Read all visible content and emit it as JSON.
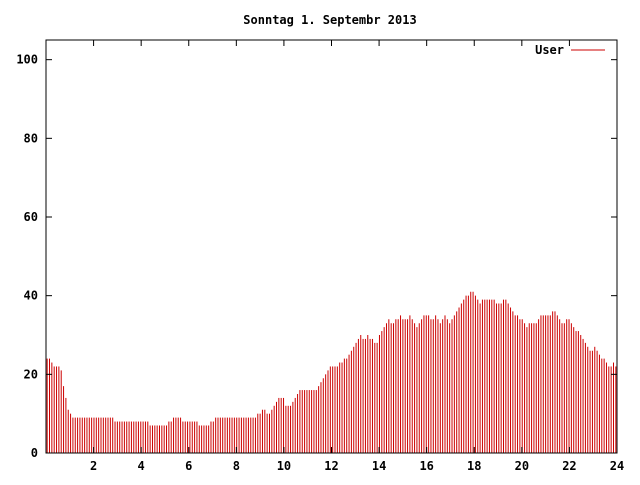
{
  "chart_data": {
    "type": "bar",
    "title": "Sonntag 1. Septembr 2013",
    "xlabel": "",
    "ylabel": "",
    "xlim": [
      0,
      24
    ],
    "ylim": [
      0,
      105
    ],
    "x_ticks": [
      2,
      4,
      6,
      8,
      10,
      12,
      14,
      16,
      18,
      20,
      22,
      24
    ],
    "y_ticks": [
      0,
      20,
      40,
      60,
      80,
      100
    ],
    "grid": false,
    "legend_position": "top-right",
    "series": [
      {
        "name": "User",
        "color": "#cc0000",
        "values": [
          24,
          24,
          23,
          22,
          22,
          22,
          21,
          17,
          14,
          11,
          10,
          9,
          9,
          9,
          9,
          9,
          9,
          9,
          9,
          9,
          9,
          9,
          9,
          9,
          9,
          9,
          9,
          9,
          9,
          8,
          8,
          8,
          8,
          8,
          8,
          8,
          8,
          8,
          8,
          8,
          8,
          8,
          8,
          8,
          7,
          7,
          7,
          7,
          7,
          7,
          7,
          7,
          8,
          8,
          9,
          9,
          9,
          9,
          8,
          8,
          8,
          8,
          8,
          8,
          8,
          7,
          7,
          7,
          7,
          7,
          8,
          8,
          9,
          9,
          9,
          9,
          9,
          9,
          9,
          9,
          9,
          9,
          9,
          9,
          9,
          9,
          9,
          9,
          9,
          9,
          10,
          10,
          11,
          11,
          10,
          10,
          11,
          12,
          13,
          14,
          14,
          14,
          12,
          12,
          12,
          13,
          14,
          15,
          16,
          16,
          16,
          16,
          16,
          16,
          16,
          16,
          17,
          18,
          19,
          20,
          21,
          22,
          22,
          22,
          22,
          23,
          23,
          24,
          24,
          25,
          26,
          27,
          28,
          29,
          30,
          29,
          29,
          30,
          29,
          29,
          28,
          28,
          30,
          31,
          32,
          33,
          34,
          33,
          33,
          34,
          34,
          35,
          34,
          34,
          34,
          35,
          34,
          33,
          32,
          33,
          34,
          35,
          35,
          35,
          34,
          34,
          35,
          34,
          33,
          34,
          35,
          34,
          33,
          34,
          35,
          36,
          37,
          38,
          39,
          40,
          40,
          41,
          41,
          40,
          39,
          38,
          39,
          39,
          39,
          39,
          39,
          39,
          38,
          38,
          38,
          39,
          39,
          38,
          37,
          36,
          35,
          35,
          34,
          34,
          33,
          32,
          33,
          33,
          33,
          33,
          34,
          35,
          35,
          35,
          35,
          35,
          36,
          36,
          35,
          34,
          33,
          33,
          34,
          34,
          33,
          32,
          31,
          31,
          30,
          29,
          28,
          27,
          26,
          26,
          27,
          26,
          25,
          24,
          24,
          23,
          22,
          22,
          23,
          22
        ]
      }
    ]
  }
}
